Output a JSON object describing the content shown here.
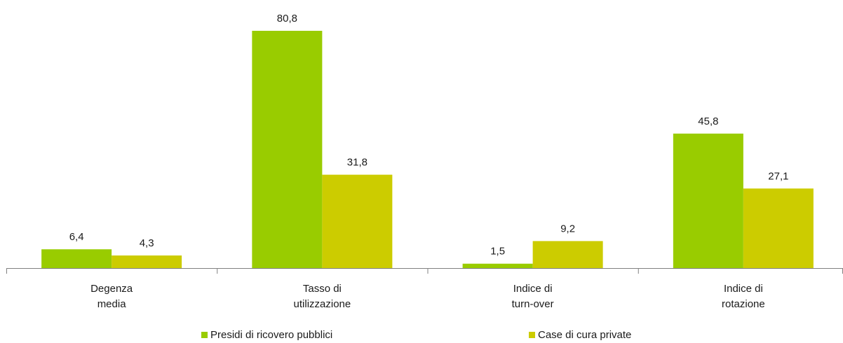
{
  "chart_data": {
    "type": "bar",
    "categories": [
      [
        "Degenza",
        "media"
      ],
      [
        "Tasso di",
        "utilizzazione"
      ],
      [
        "Indice di",
        "turn-over"
      ],
      [
        "Indice di",
        "rotazione"
      ]
    ],
    "series": [
      {
        "name": "Presidi di ricovero pubblici",
        "values": [
          6.4,
          80.8,
          1.5,
          45.8
        ],
        "labels": [
          "6,4",
          "80,8",
          "1,5",
          "45,8"
        ],
        "color": "#99cc00"
      },
      {
        "name": "Case di cura private",
        "values": [
          4.3,
          31.8,
          9.2,
          27.1
        ],
        "labels": [
          "4,3",
          "31,8",
          "9,2",
          "27,1"
        ],
        "color": "#cccc00"
      }
    ],
    "ylim": [
      0,
      80.8
    ],
    "grid": false,
    "legend_position": "bottom"
  }
}
